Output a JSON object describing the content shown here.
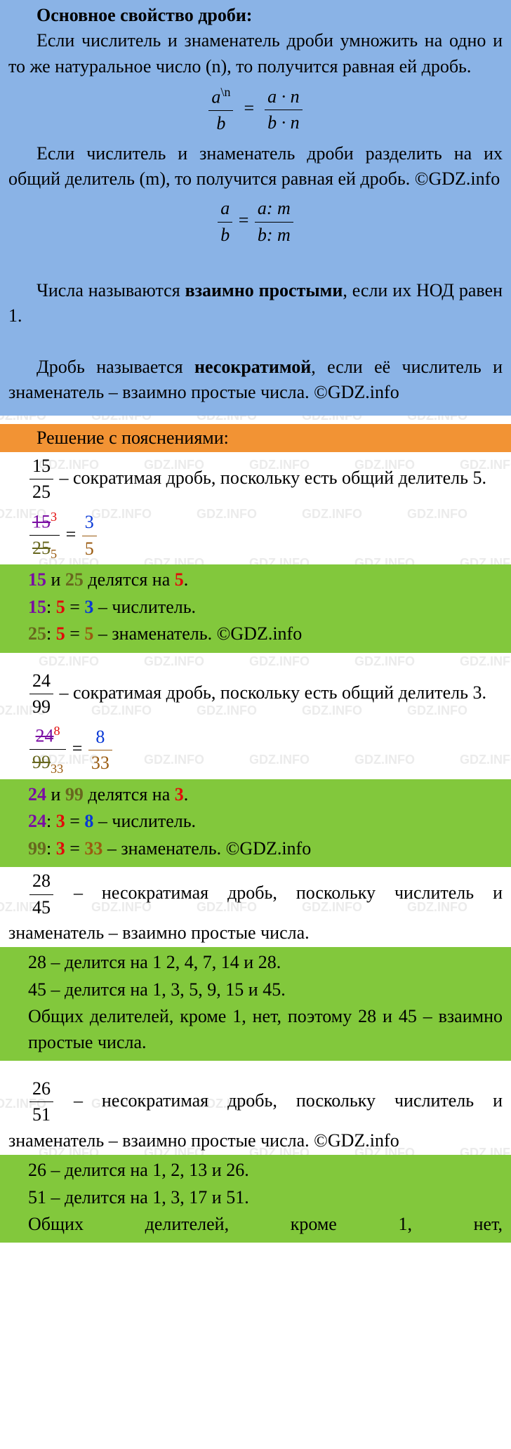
{
  "colors": {
    "bg_blue": "#8ab3e6",
    "bg_orange": "#f29334",
    "bg_green": "#82c83c",
    "bg_white": "#ffffff",
    "text_black": "#000000",
    "purple": "#7a0da3",
    "olive": "#67671e",
    "red": "#e20a0a",
    "blue": "#0838d6",
    "brown": "#9a5a0f",
    "watermark": "rgba(120,120,120,0.15)"
  },
  "watermark_text": "GDZ.INFO",
  "blue_box": {
    "title": "Основное свойство дроби:",
    "p1": "Если числитель и знаменатель дроби умножить на одно и то же натуральное число (n), то получится равная ей дробь.",
    "eq1": {
      "left_num": "a",
      "left_sup": "\\n",
      "left_den": "b",
      "right_num": "a · n",
      "right_den": "b · n"
    },
    "p2": "Если числитель и знаменатель дроби разделить на их общий делитель (m), то получится равная ей дробь. ©GDZ.info",
    "eq2": {
      "left_num": "a",
      "left_den": "b",
      "right_num": "a: m",
      "right_den": "b: m"
    },
    "p3a": "Числа называются ",
    "p3b": "взаимно простыми",
    "p3c": ", если их НОД равен 1.",
    "p4a": "Дробь называется ",
    "p4b": "несократимой",
    "p4c": ", если её числитель и знаменатель – взаимно простые числа. ©GDZ.info"
  },
  "orange": {
    "title": "Решение с пояснениями:"
  },
  "ex1": {
    "frac": {
      "num": "15",
      "den": "25"
    },
    "text": " – сократимая дробь, поскольку есть общий делитель 5.",
    "reduce": {
      "num_strike": "15",
      "num_sup": "3",
      "den_strike": "25",
      "den_sub": "5",
      "res_num": "3",
      "res_den": "5"
    },
    "green": {
      "l1_a": "15",
      "l1_b": " и ",
      "l1_c": "25",
      "l1_d": " делятся на ",
      "l1_e": "5",
      "l1_f": ".",
      "l2_a": "15",
      "l2_b": ": ",
      "l2_c": "5",
      "l2_d": " = ",
      "l2_e": "3",
      "l2_f": " – числитель.",
      "l3_a": "25",
      "l3_b": ": ",
      "l3_c": "5",
      "l3_d": " = ",
      "l3_e": "5",
      "l3_f": " – знаменатель. ©GDZ.info"
    }
  },
  "ex2": {
    "frac": {
      "num": "24",
      "den": "99"
    },
    "text": " – сократимая дробь, поскольку есть общий делитель 3.",
    "reduce": {
      "num_strike": "24",
      "num_sup": "8",
      "den_strike": "99",
      "den_sub": "33",
      "res_num": "8",
      "res_den": "33"
    },
    "green": {
      "l1_a": "24",
      "l1_b": " и ",
      "l1_c": "99",
      "l1_d": " делятся на ",
      "l1_e": "3",
      "l1_f": ".",
      "l2_a": "24",
      "l2_b": ": ",
      "l2_c": "3",
      "l2_d": " = ",
      "l2_e": "8",
      "l2_f": " – числитель.",
      "l3_a": "99",
      "l3_b": ": ",
      "l3_c": "3",
      "l3_d": " = ",
      "l3_e": "33",
      "l3_f": " – знаменатель. ©GDZ.info"
    }
  },
  "ex3": {
    "frac": {
      "num": "28",
      "den": "45"
    },
    "text": " – несократимая дробь, поскольку числитель и знаменатель – взаимно простые числа.",
    "green": {
      "l1": "28 – делится на 1 2, 4, 7, 14 и 28.",
      "l2": "45 – делится на 1, 3, 5, 9, 15 и 45.",
      "l3": "Общих делителей, кроме 1, нет, поэтому 28 и 45 – взаимно простые числа."
    }
  },
  "ex4": {
    "frac": {
      "num": "26",
      "den": "51"
    },
    "text": " – несократимая дробь, поскольку числитель и знаменатель – взаимно простые числа. ©GDZ.info",
    "green": {
      "l1": "26 – делится на 1, 2, 13 и 26.",
      "l2": "51 – делится на 1, 3, 17 и 51.",
      "l3": "Общих делителей, кроме 1, нет,"
    }
  }
}
